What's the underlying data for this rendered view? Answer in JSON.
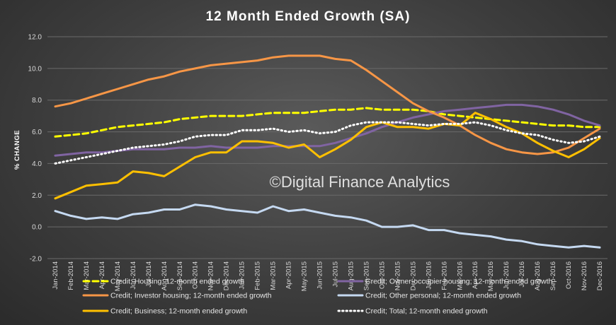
{
  "chart_data": {
    "type": "line",
    "title": "12 Month Ended Growth (SA)",
    "ylabel": "% CHANGE",
    "xlabel": "",
    "ylim": [
      -2,
      12
    ],
    "yticks": [
      "12.0",
      "10.0",
      "8.0",
      "6.0",
      "4.0",
      "2.0",
      "0.0",
      "-2.0"
    ],
    "grid": true,
    "legend_position": "bottom",
    "categories": [
      "Jan-2014",
      "Feb-2014",
      "Mar-2014",
      "Apr-2014",
      "May-2014",
      "Jun-2014",
      "Jul-2014",
      "Aug-2014",
      "Sep-2014",
      "Oct-2014",
      "Nov-2014",
      "Dec-2014",
      "Jan-2015",
      "Feb-2015",
      "Mar-2015",
      "Apr-2015",
      "May-2015",
      "Jun-2015",
      "Jul-2015",
      "Aug-2015",
      "Sep-2015",
      "Oct-2015",
      "Nov-2015",
      "Dec-2015",
      "Jan-2016",
      "Feb-2016",
      "Mar-2016",
      "Apr-2016",
      "May-2016",
      "Jun-2016",
      "Jul-2016",
      "Aug-2016",
      "Sep-2016",
      "Oct-2016",
      "Nov-2016",
      "Dec-2016"
    ],
    "series": [
      {
        "name": "Credit; Housing; 12-month ended growth",
        "color": "#ffff00",
        "dash": "8,5",
        "width": 3,
        "values": [
          5.7,
          5.8,
          5.9,
          6.1,
          6.3,
          6.4,
          6.5,
          6.6,
          6.8,
          6.9,
          7.0,
          7.0,
          7.0,
          7.1,
          7.2,
          7.2,
          7.2,
          7.3,
          7.4,
          7.4,
          7.5,
          7.4,
          7.4,
          7.4,
          7.3,
          7.1,
          7.0,
          6.9,
          6.8,
          6.7,
          6.6,
          6.5,
          6.4,
          6.4,
          6.3,
          6.3
        ]
      },
      {
        "name": "Credit; Owner-occupier housing; 12-month ended growth",
        "color": "#8064a2",
        "dash": "",
        "width": 3,
        "values": [
          4.5,
          4.6,
          4.7,
          4.7,
          4.8,
          4.9,
          4.9,
          4.9,
          5.0,
          5.0,
          5.1,
          5.0,
          5.0,
          5.0,
          5.1,
          5.1,
          5.1,
          5.1,
          5.3,
          5.6,
          5.9,
          6.3,
          6.6,
          6.9,
          7.1,
          7.3,
          7.4,
          7.5,
          7.6,
          7.7,
          7.7,
          7.6,
          7.4,
          7.1,
          6.7,
          6.4
        ]
      },
      {
        "name": "Credit; Investor housing; 12-month ended growth",
        "color": "#f79646",
        "dash": "",
        "width": 3,
        "values": [
          7.6,
          7.8,
          8.1,
          8.4,
          8.7,
          9.0,
          9.3,
          9.5,
          9.8,
          10.0,
          10.2,
          10.3,
          10.4,
          10.5,
          10.7,
          10.8,
          10.8,
          10.8,
          10.6,
          10.5,
          9.9,
          9.2,
          8.5,
          7.8,
          7.3,
          6.9,
          6.4,
          5.8,
          5.3,
          4.9,
          4.7,
          4.6,
          4.7,
          5.0,
          5.6,
          6.2
        ]
      },
      {
        "name": "Credit; Other personal; 12-month ended growth",
        "color": "#c5d9f1",
        "dash": "",
        "width": 3,
        "values": [
          1.0,
          0.7,
          0.5,
          0.6,
          0.5,
          0.8,
          0.9,
          1.1,
          1.1,
          1.4,
          1.3,
          1.1,
          1.0,
          0.9,
          1.3,
          1.0,
          1.1,
          0.9,
          0.7,
          0.6,
          0.4,
          0.0,
          0.0,
          0.1,
          -0.2,
          -0.2,
          -0.4,
          -0.5,
          -0.6,
          -0.8,
          -0.9,
          -1.1,
          -1.2,
          -1.3,
          -1.2,
          -1.3
        ]
      },
      {
        "name": "Credit; Business; 12-month ended growth",
        "color": "#ffc000",
        "dash": "",
        "width": 3,
        "values": [
          1.8,
          2.2,
          2.6,
          2.7,
          2.8,
          3.5,
          3.4,
          3.2,
          3.8,
          4.4,
          4.7,
          4.7,
          5.4,
          5.4,
          5.3,
          5.0,
          5.2,
          4.4,
          4.9,
          5.5,
          6.3,
          6.6,
          6.3,
          6.3,
          6.2,
          6.5,
          6.4,
          7.2,
          6.8,
          6.3,
          5.9,
          5.3,
          4.8,
          4.4,
          4.9,
          5.6
        ]
      },
      {
        "name": "Credit; Total; 12-month ended growth",
        "color": "#ffffff",
        "dash": "1.5,4",
        "width": 3,
        "values": [
          4.0,
          4.2,
          4.4,
          4.6,
          4.8,
          5.0,
          5.1,
          5.2,
          5.4,
          5.7,
          5.8,
          5.8,
          6.1,
          6.1,
          6.2,
          6.0,
          6.1,
          5.9,
          6.0,
          6.4,
          6.6,
          6.6,
          6.6,
          6.5,
          6.4,
          6.5,
          6.5,
          6.6,
          6.4,
          6.1,
          5.9,
          5.8,
          5.5,
          5.3,
          5.4,
          5.7
        ]
      }
    ]
  },
  "watermark": "©Digital Finance Analytics"
}
